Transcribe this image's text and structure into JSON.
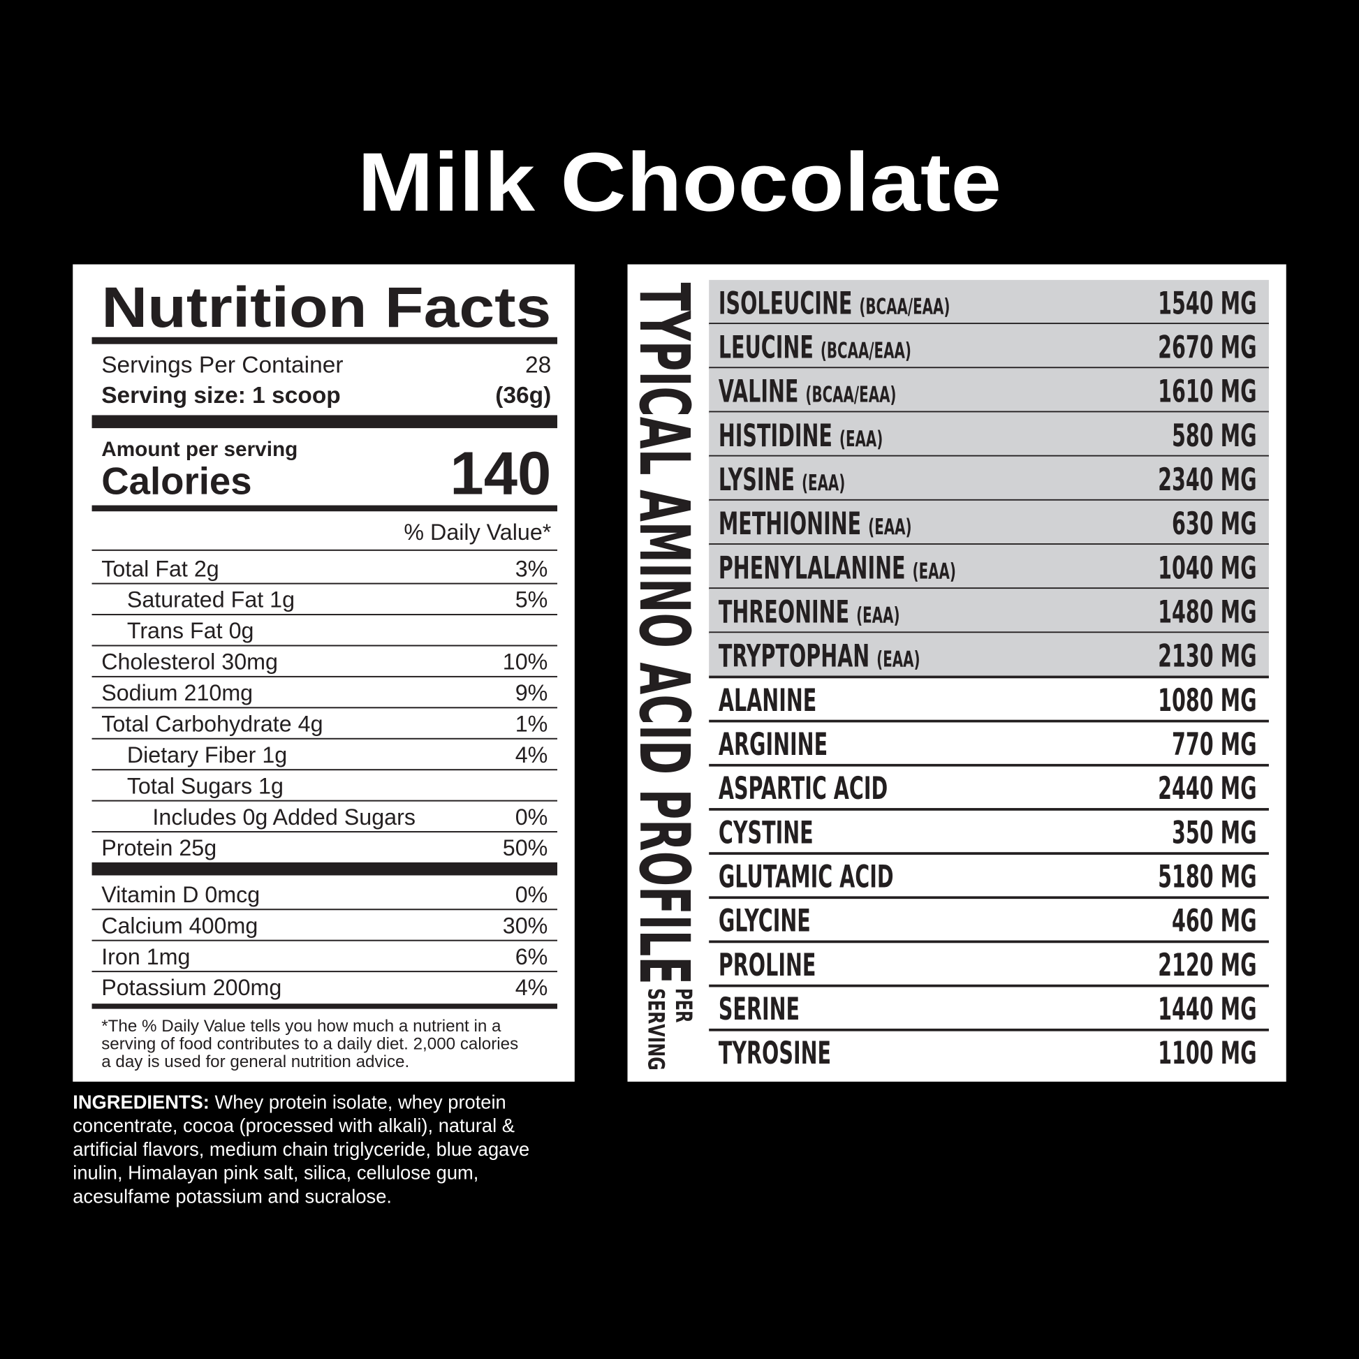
{
  "header": {
    "title": "Milk Chocolate"
  },
  "nutrition_facts": {
    "title": "Nutrition Facts",
    "servings_label": "Servings Per Container",
    "servings_value": "28",
    "serving_size_label": "Serving size: 1 scoop",
    "serving_size_value": "(36g)",
    "amount_label": "Amount per serving",
    "calories_label": "Calories",
    "calories_value": "140",
    "daily_value_header": "% Daily Value*",
    "nutrients": [
      {
        "label": "Total Fat 2g",
        "dv": "3%",
        "indent": 0
      },
      {
        "label": "Saturated Fat 1g",
        "dv": "5%",
        "indent": 1
      },
      {
        "label": "Trans Fat 0g",
        "indent": 1
      },
      {
        "label": "Cholesterol 30mg",
        "dv": "10%",
        "indent": 0
      },
      {
        "label": "Sodium 210mg",
        "dv": "9%",
        "indent": 0
      },
      {
        "label": "Total Carbohydrate 4g",
        "dv": "1%",
        "indent": 0
      },
      {
        "label": "Dietary Fiber 1g",
        "dv": "4%",
        "indent": 1
      },
      {
        "label": "Total Sugars 1g",
        "indent": 1
      },
      {
        "label": "Includes 0g Added Sugars",
        "dv": "0%",
        "indent": 2
      },
      {
        "label": "Protein 25g",
        "dv": "50%",
        "indent": 0
      }
    ],
    "vitamins": [
      {
        "label": "Vitamin D 0mcg",
        "dv": "0%",
        "indent": 0
      },
      {
        "label": "Calcium 400mg",
        "dv": "30%",
        "indent": 0
      },
      {
        "label": "Iron 1mg",
        "dv": "6%",
        "indent": 0
      },
      {
        "label": "Potassium 200mg",
        "dv": "4%",
        "indent": 0
      }
    ],
    "footnote": [
      "*The % Daily Value tells you how much a nutrient in a",
      "serving of food contributes to a daily diet. 2,000 calories",
      "a day is used for general nutrition advice."
    ]
  },
  "ingredients": {
    "label": "INGREDIENTS:",
    "lines": [
      "Whey protein isolate, whey protein",
      "concentrate, cocoa (processed with alkali), natural &",
      "artificial flavors, medium chain triglyceride, blue agave",
      "inulin, Himalayan pink salt, silica, cellulose gum,",
      "acesulfame potassium and sucralose."
    ]
  },
  "amino_profile": {
    "title": "TYPICAL AMINO ACID PROFILE",
    "subtitle": [
      "PER",
      "SERVING"
    ],
    "rows": [
      {
        "name": "ISOLEUCINE",
        "tag": "(BCAA/EAA)",
        "amount": "1540 MG"
      },
      {
        "name": "LEUCINE",
        "tag": "(BCAA/EAA)",
        "amount": "2670 MG"
      },
      {
        "name": "VALINE",
        "tag": "(BCAA/EAA)",
        "amount": "1610 MG"
      },
      {
        "name": "HISTIDINE",
        "tag": "(EAA)",
        "amount": "580 MG"
      },
      {
        "name": "LYSINE",
        "tag": "(EAA)",
        "amount": "2340 MG"
      },
      {
        "name": "METHIONINE",
        "tag": "(EAA)",
        "amount": "630 MG"
      },
      {
        "name": "PHENYLALANINE",
        "tag": "(EAA)",
        "amount": "1040 MG"
      },
      {
        "name": "THREONINE",
        "tag": "(EAA)",
        "amount": "1480 MG"
      },
      {
        "name": "TRYPTOPHAN",
        "tag": "(EAA)",
        "amount": "2130 MG"
      },
      {
        "name": "ALANINE",
        "amount": "1080 MG"
      },
      {
        "name": "ARGININE",
        "amount": "770 MG"
      },
      {
        "name": "ASPARTIC ACID",
        "amount": "2440 MG"
      },
      {
        "name": "CYSTINE",
        "amount": "350 MG"
      },
      {
        "name": "GLUTAMIC ACID",
        "amount": "5180 MG"
      },
      {
        "name": "GLYCINE",
        "amount": "460 MG"
      },
      {
        "name": "PROLINE",
        "amount": "2120 MG"
      },
      {
        "name": "SERINE",
        "amount": "1440 MG"
      },
      {
        "name": "TYROSINE",
        "amount": "1100 MG"
      }
    ]
  }
}
